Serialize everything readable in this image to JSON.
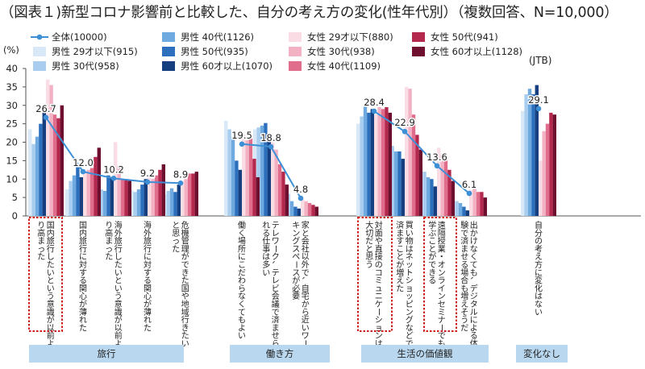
{
  "chart_data": {
    "type": "bar",
    "title": "（図表１)新型コロナ影響前と比較した、自分の考え方の変化(性年代別）（複数回答、N=10,000）",
    "y_unit": "(%)",
    "source_label": "(JTB)",
    "ylim": [
      0,
      40
    ],
    "yticks": [
      "0",
      "5",
      "10",
      "15",
      "20",
      "25",
      "30",
      "35",
      "40"
    ],
    "categories": [
      "国内旅行したいという意識が以前より高まった",
      "国内旅行に対する関心が薄れた",
      "海外旅行したいという意識が以前より高まった",
      "海外旅行に対する関心が薄れた",
      "危機管理ができた国や地域行きたいと思った",
      "働く場所にこだわらなくてもよい",
      "テレワーク、テレビ会議で済ませられる仕事は多い",
      "家と会社以外で、自宅から近いワーキングスペースが必要",
      "対面や直接のコミュニケーションは大切だと思う",
      "買い物はネットショッピングなどで済ますことが増えた",
      "遠隔授業・オンラインセミナーでも学ぶことができる",
      "出かけなくても、デジタルによる体験で済ませる場合も増えそうだ",
      "自分の考え方に変化はない"
    ],
    "groups": [
      {
        "label": "旅行",
        "from": 0,
        "to": 4
      },
      {
        "label": "働き方",
        "from": 5,
        "to": 7
      },
      {
        "label": "生活の価値観",
        "from": 8,
        "to": 11
      },
      {
        "label": "変化なし",
        "from": 12,
        "to": 12
      }
    ],
    "highlighted": [
      0,
      8,
      10
    ],
    "overall": {
      "name": "全体(10000)",
      "color": "#3d8fd6",
      "values": [
        26.7,
        12.0,
        10.2,
        9.2,
        8.9,
        19.5,
        18.8,
        4.8,
        28.4,
        22.9,
        13.6,
        6.1,
        29.1
      ],
      "labels": [
        "26.7",
        "12.0",
        "10.2",
        "9.2",
        "8.9",
        "19.5",
        "18.8",
        "4.8",
        "28.4",
        "22.9",
        "13.6",
        "6.1",
        "29.1"
      ]
    },
    "series": [
      {
        "name": "男性 29才以下(915)",
        "color": "#d8e8f6",
        "values": [
          23.5,
          7.2,
          7.8,
          7.0,
          5.8,
          25.8,
          23.5,
          7.5,
          25.0,
          21.0,
          13.5,
          4.5,
          28.5
        ]
      },
      {
        "name": "男性 30代(958)",
        "color": "#a9cdef",
        "values": [
          19.5,
          9.5,
          7.2,
          6.5,
          6.8,
          23.5,
          24.0,
          6.0,
          27.0,
          19.0,
          12.0,
          4.0,
          33.0
        ]
      },
      {
        "name": "男性 40代(1126)",
        "color": "#6ea9e0",
        "values": [
          21.5,
          11.0,
          6.8,
          7.2,
          7.5,
          21.5,
          24.5,
          4.0,
          30.0,
          17.5,
          10.5,
          3.5,
          34.5
        ]
      },
      {
        "name": "男性 50代(935)",
        "color": "#2c6fbd",
        "values": [
          25.0,
          13.2,
          11.0,
          8.5,
          6.5,
          15.0,
          25.2,
          2.5,
          28.0,
          17.5,
          10.0,
          2.5,
          33.0
        ]
      },
      {
        "name": "男性 60才以上(1070)",
        "color": "#163f7f",
        "values": [
          29.0,
          10.5,
          10.5,
          10.0,
          8.5,
          12.5,
          22.0,
          2.0,
          29.0,
          15.5,
          8.0,
          1.5,
          35.5
        ]
      },
      {
        "name": "女性 29才以下(880)",
        "color": "#f9dce4",
        "values": [
          37.0,
          12.0,
          20.0,
          11.0,
          9.5,
          22.0,
          20.5,
          4.5,
          27.5,
          35.0,
          18.5,
          7.0,
          15.0
        ]
      },
      {
        "name": "女性 30代(938)",
        "color": "#f2b2c4",
        "values": [
          35.5,
          12.5,
          13.5,
          10.0,
          10.0,
          20.5,
          18.0,
          4.0,
          29.5,
          34.5,
          16.5,
          8.0,
          23.0
        ]
      },
      {
        "name": "女性 40代(1109)",
        "color": "#e06d8c",
        "values": [
          27.5,
          13.0,
          10.0,
          11.0,
          11.5,
          21.0,
          14.0,
          3.5,
          29.0,
          27.5,
          15.0,
          6.5,
          25.0
        ]
      },
      {
        "name": "女性 50代(941)",
        "color": "#b5284e",
        "values": [
          26.5,
          16.0,
          10.0,
          12.5,
          11.5,
          15.5,
          12.0,
          3.0,
          29.5,
          22.0,
          12.5,
          6.5,
          28.0
        ]
      },
      {
        "name": "女性 60才以上(1128)",
        "color": "#6e0f30",
        "values": [
          30.0,
          18.5,
          9.5,
          14.0,
          12.0,
          10.5,
          8.5,
          2.5,
          28.0,
          18.0,
          9.5,
          5.0,
          27.5
        ]
      }
    ],
    "grid": false,
    "legend_position": "top"
  }
}
